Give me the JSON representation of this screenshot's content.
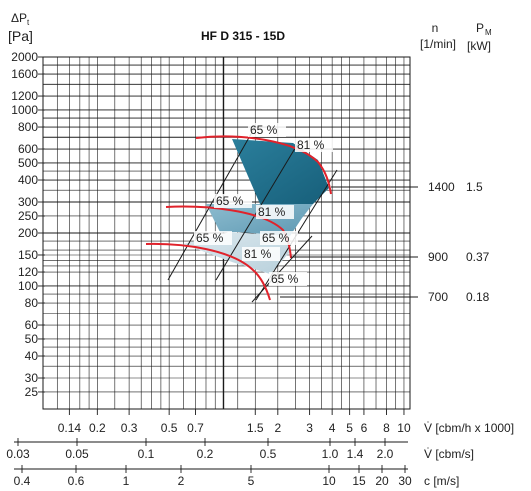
{
  "chart_data": {
    "type": "line",
    "title": "HF D 315 - 15D",
    "y_axis": {
      "symbol": "ΔP",
      "subscript": "t",
      "unit": "[Pa]",
      "scale": "log",
      "range": [
        20,
        2000
      ],
      "tick_labels": [
        2000,
        1600,
        1200,
        1000,
        800,
        600,
        500,
        400,
        300,
        250,
        200,
        150,
        120,
        100,
        80,
        60,
        50,
        40,
        30,
        25
      ]
    },
    "x_axes": [
      {
        "label": "V̇ [cbm/h x 1000]",
        "scale": "log",
        "tick_labels": [
          "0.14",
          "0.2",
          "0.3",
          "0.5",
          "0.7",
          "1.5",
          "2",
          "3",
          "4",
          "5",
          "6",
          "8",
          "10"
        ]
      },
      {
        "label": "V̇ [cbm/s]",
        "scale": "log",
        "tick_labels": [
          "0.03",
          "0.05",
          "0.1",
          "0.2",
          "0.5",
          "1.0",
          "1.4",
          "2.0"
        ]
      },
      {
        "label": "c [m/s]",
        "scale": "log",
        "tick_labels": [
          "0.4",
          "0.6",
          "1",
          "2",
          "5",
          "10",
          "15",
          "20",
          "30"
        ]
      }
    ],
    "right_headers": {
      "n_label": "n",
      "n_unit": "[1/min]",
      "p_symbol": "P",
      "p_subscript": "M",
      "p_unit": "[kW]"
    },
    "operating_points": [
      {
        "speed": "1400",
        "power": "1.5"
      },
      {
        "speed": "900",
        "power": "0.37"
      },
      {
        "speed": "700",
        "power": "0.18"
      }
    ],
    "efficiency_labels": [
      "65 %",
      "81 %",
      "65 %",
      "81 %",
      "65 %",
      "65 %",
      "81 %",
      "65 %"
    ],
    "colors": {
      "curve": "#e0222b",
      "grid": "#1a1a1a",
      "region_dark": "#1e6f8c",
      "region_mid": "#6fa8c0",
      "region_light": "#c9dce6"
    }
  }
}
